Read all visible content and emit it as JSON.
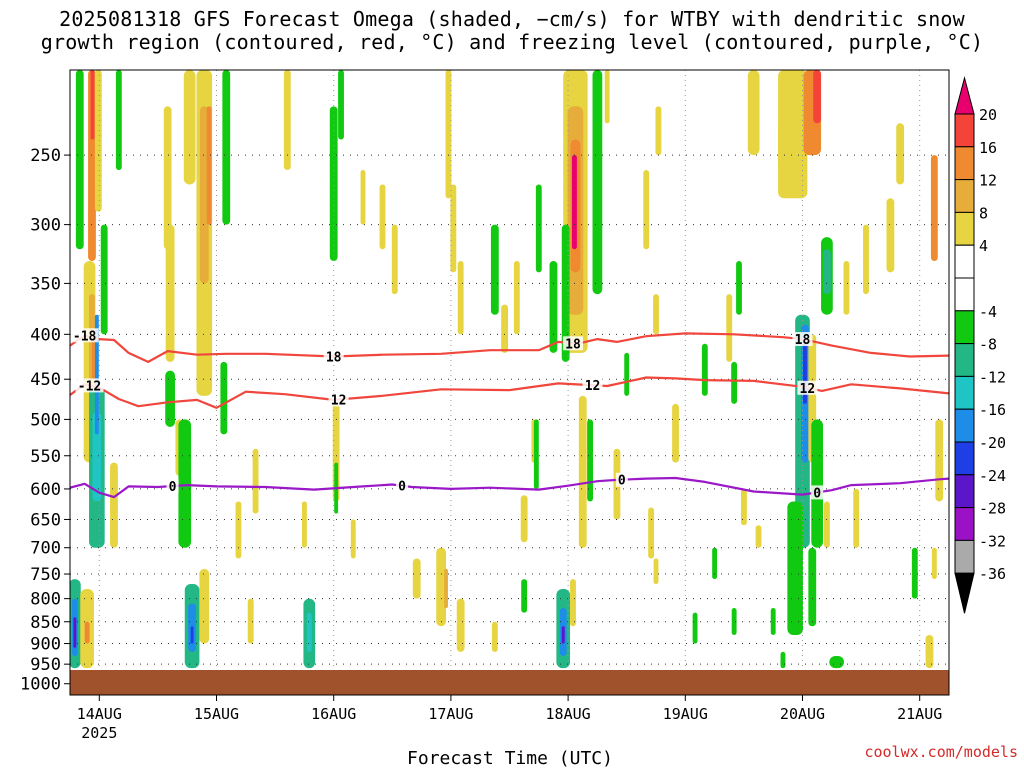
{
  "title": {
    "line1": "2025081318 GFS Forecast Omega (shaded, −cm/s) for WTBY with dendritic snow",
    "line2": "growth region (contoured, red, °C) and freezing level (contoured, purple, °C)"
  },
  "footer": {
    "credit": "coolwx.com/models"
  },
  "chart_data": {
    "type": "heatmap",
    "xlabel": "Forecast Time (UTC)",
    "ylabel": "",
    "x_ticks": [
      {
        "label": "14AUG",
        "sub": "2025",
        "t": 6
      },
      {
        "label": "15AUG",
        "sub": "",
        "t": 30
      },
      {
        "label": "16AUG",
        "sub": "",
        "t": 54
      },
      {
        "label": "17AUG",
        "sub": "",
        "t": 78
      },
      {
        "label": "18AUG",
        "sub": "",
        "t": 102
      },
      {
        "label": "19AUG",
        "sub": "",
        "t": 126
      },
      {
        "label": "20AUG",
        "sub": "",
        "t": 150
      },
      {
        "label": "21AUG",
        "sub": "",
        "t": 174
      }
    ],
    "xlim_hours": [
      0,
      180
    ],
    "y_ticks": [
      250,
      300,
      350,
      400,
      450,
      500,
      550,
      600,
      650,
      700,
      750,
      800,
      850,
      900,
      950,
      1000
    ],
    "ylim_hPa": [
      200,
      1000
    ],
    "y_scale": "log-pressure",
    "grid": true,
    "colorbar": {
      "labels": [
        "20",
        "16",
        "12",
        "8",
        "4",
        "-4",
        "-8",
        "-12",
        "-16",
        "-20",
        "-24",
        "-28",
        "-32",
        "-36"
      ],
      "colors": [
        "#e8006e",
        "#f44338",
        "#ef8a30",
        "#e7ad3b",
        "#e6d440",
        "#ffffff",
        "#ffffff",
        "#12c912",
        "#23b786",
        "#1fc4c4",
        "#1e8de8",
        "#1f3fe6",
        "#5a16c8",
        "#9b12c6",
        "#aaaaaa",
        "#000000"
      ]
    },
    "contours": [
      {
        "name": "-18",
        "color": "#f0463c",
        "labels": [
          {
            "t": 3,
            "text": "-18"
          },
          {
            "t": 54,
            "text": "18"
          },
          {
            "t": 103,
            "text": "18"
          },
          {
            "t": 150,
            "text": "18"
          }
        ],
        "points": [
          [
            0,
            412
          ],
          [
            3,
            401
          ],
          [
            6,
            405
          ],
          [
            9,
            406
          ],
          [
            12,
            420
          ],
          [
            16,
            430
          ],
          [
            20,
            418
          ],
          [
            26,
            422
          ],
          [
            32,
            421
          ],
          [
            40,
            421
          ],
          [
            54,
            424
          ],
          [
            64,
            422
          ],
          [
            76,
            421
          ],
          [
            86,
            417
          ],
          [
            96,
            417
          ],
          [
            100,
            408
          ],
          [
            104,
            410
          ],
          [
            108,
            405
          ],
          [
            112,
            408
          ],
          [
            118,
            402
          ],
          [
            126,
            399
          ],
          [
            136,
            400
          ],
          [
            146,
            403
          ],
          [
            150,
            405
          ],
          [
            156,
            412
          ],
          [
            164,
            420
          ],
          [
            172,
            424
          ],
          [
            180,
            423
          ]
        ]
      },
      {
        "name": "-12",
        "color": "#f0463c",
        "labels": [
          {
            "t": 4,
            "text": "-12"
          },
          {
            "t": 55,
            "text": "12"
          },
          {
            "t": 107,
            "text": "12"
          },
          {
            "t": 151,
            "text": "12"
          }
        ],
        "points": [
          [
            0,
            469
          ],
          [
            3,
            456
          ],
          [
            6,
            460
          ],
          [
            10,
            474
          ],
          [
            14,
            483
          ],
          [
            20,
            478
          ],
          [
            26,
            475
          ],
          [
            30,
            485
          ],
          [
            36,
            465
          ],
          [
            44,
            468
          ],
          [
            54,
            475
          ],
          [
            64,
            470
          ],
          [
            76,
            462
          ],
          [
            90,
            463
          ],
          [
            100,
            455
          ],
          [
            110,
            458
          ],
          [
            118,
            448
          ],
          [
            124,
            449
          ],
          [
            130,
            451
          ],
          [
            140,
            452
          ],
          [
            150,
            459
          ],
          [
            154,
            464
          ],
          [
            160,
            456
          ],
          [
            170,
            461
          ],
          [
            180,
            467
          ]
        ]
      },
      {
        "name": "0",
        "color": "#9a18c8",
        "labels": [
          {
            "t": 21,
            "text": "0"
          },
          {
            "t": 68,
            "text": "0"
          },
          {
            "t": 113,
            "text": "0"
          },
          {
            "t": 153,
            "text": "0"
          }
        ],
        "points": [
          [
            0,
            598
          ],
          [
            3,
            592
          ],
          [
            6,
            606
          ],
          [
            9,
            613
          ],
          [
            12,
            596
          ],
          [
            18,
            597
          ],
          [
            24,
            594
          ],
          [
            30,
            596
          ],
          [
            40,
            597
          ],
          [
            50,
            601
          ],
          [
            60,
            596
          ],
          [
            66,
            593
          ],
          [
            70,
            597
          ],
          [
            78,
            600
          ],
          [
            86,
            598
          ],
          [
            96,
            601
          ],
          [
            102,
            595
          ],
          [
            108,
            588
          ],
          [
            112,
            586
          ],
          [
            118,
            584
          ],
          [
            124,
            583
          ],
          [
            130,
            589
          ],
          [
            140,
            604
          ],
          [
            150,
            609
          ],
          [
            156,
            602
          ],
          [
            160,
            594
          ],
          [
            170,
            591
          ],
          [
            178,
            585
          ],
          [
            180,
            584
          ]
        ]
      }
    ]
  }
}
